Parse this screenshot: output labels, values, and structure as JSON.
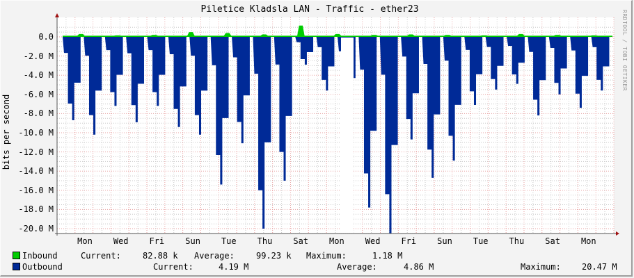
{
  "title": "Piletice Kladsla LAN - Traffic - ether23",
  "watermark": "RRDTOOL / TOBI OETIKER",
  "colors": {
    "inbound": "#00cc00",
    "outbound": "#002a97",
    "grid_major": "#e8a0a0",
    "grid_minor": "#c8c8c8",
    "background": "#f3f3f3",
    "plot_bg": "#ffffff"
  },
  "chart_data": {
    "type": "area",
    "title": "Piletice Kladsla LAN - Traffic - ether23",
    "xlabel": "",
    "ylabel": "bits per second",
    "ylim": [
      -20.5,
      1.5
    ],
    "y_ticks": [
      "0.0",
      "-2.0 M",
      "-4.0 M",
      "-6.0 M",
      "-8.0 M",
      "-10.0 M",
      "-12.0 M",
      "-14.0 M",
      "-16.0 M",
      "-18.0 M",
      "-20.0 M"
    ],
    "x_ticks": [
      "Mon",
      "Wed",
      "Fri",
      "Sun",
      "Tue",
      "Thu",
      "Sat",
      "Mon",
      "Wed",
      "Fri",
      "Sun",
      "Tue",
      "Thu",
      "Sat",
      "Mon"
    ],
    "grid": true,
    "legend_position": "bottom",
    "series": [
      {
        "name": "Inbound",
        "color": "#00cc00",
        "note": "plotted positive, mostly ~0.1 M with peaks up to 1.18 M",
        "peaks_M": [
          0.3,
          0.15,
          0.2,
          0.5,
          0.4,
          0.25,
          1.18,
          0.3,
          0.2,
          0.25,
          0.2,
          0.15,
          0.3,
          0.2,
          0.15
        ]
      },
      {
        "name": "Outbound",
        "color": "#002a97",
        "note": "plotted negative (mirrored), daily dips",
        "daily_min_M": [
          -8.7,
          -10.2,
          -7.2,
          -8.9,
          -7.2,
          -9.4,
          -10.2,
          -15.4,
          -11.1,
          -20.0,
          -15.0,
          -2.9,
          -5.6,
          -7.8,
          -17.8,
          -20.5,
          -10.7,
          -14.7,
          -12.9,
          -7.1,
          -5.5,
          -4.9,
          -8.2,
          -6.0,
          -7.4,
          -5.6
        ]
      }
    ]
  },
  "axis": {
    "y_label": "bits per second"
  },
  "legend": {
    "inbound": {
      "name": "Inbound",
      "current_label": "Current:",
      "current": "82.88 k",
      "average_label": "Average:",
      "average": "99.23 k",
      "maximum_label": "Maximum:",
      "maximum": "1.18 M"
    },
    "outbound": {
      "name": "Outbound",
      "current_label": "Current:",
      "current": "4.19 M",
      "average_label": "Average:",
      "average": "4.86 M",
      "maximum_label": "Maximum:",
      "maximum": "20.47 M"
    }
  }
}
